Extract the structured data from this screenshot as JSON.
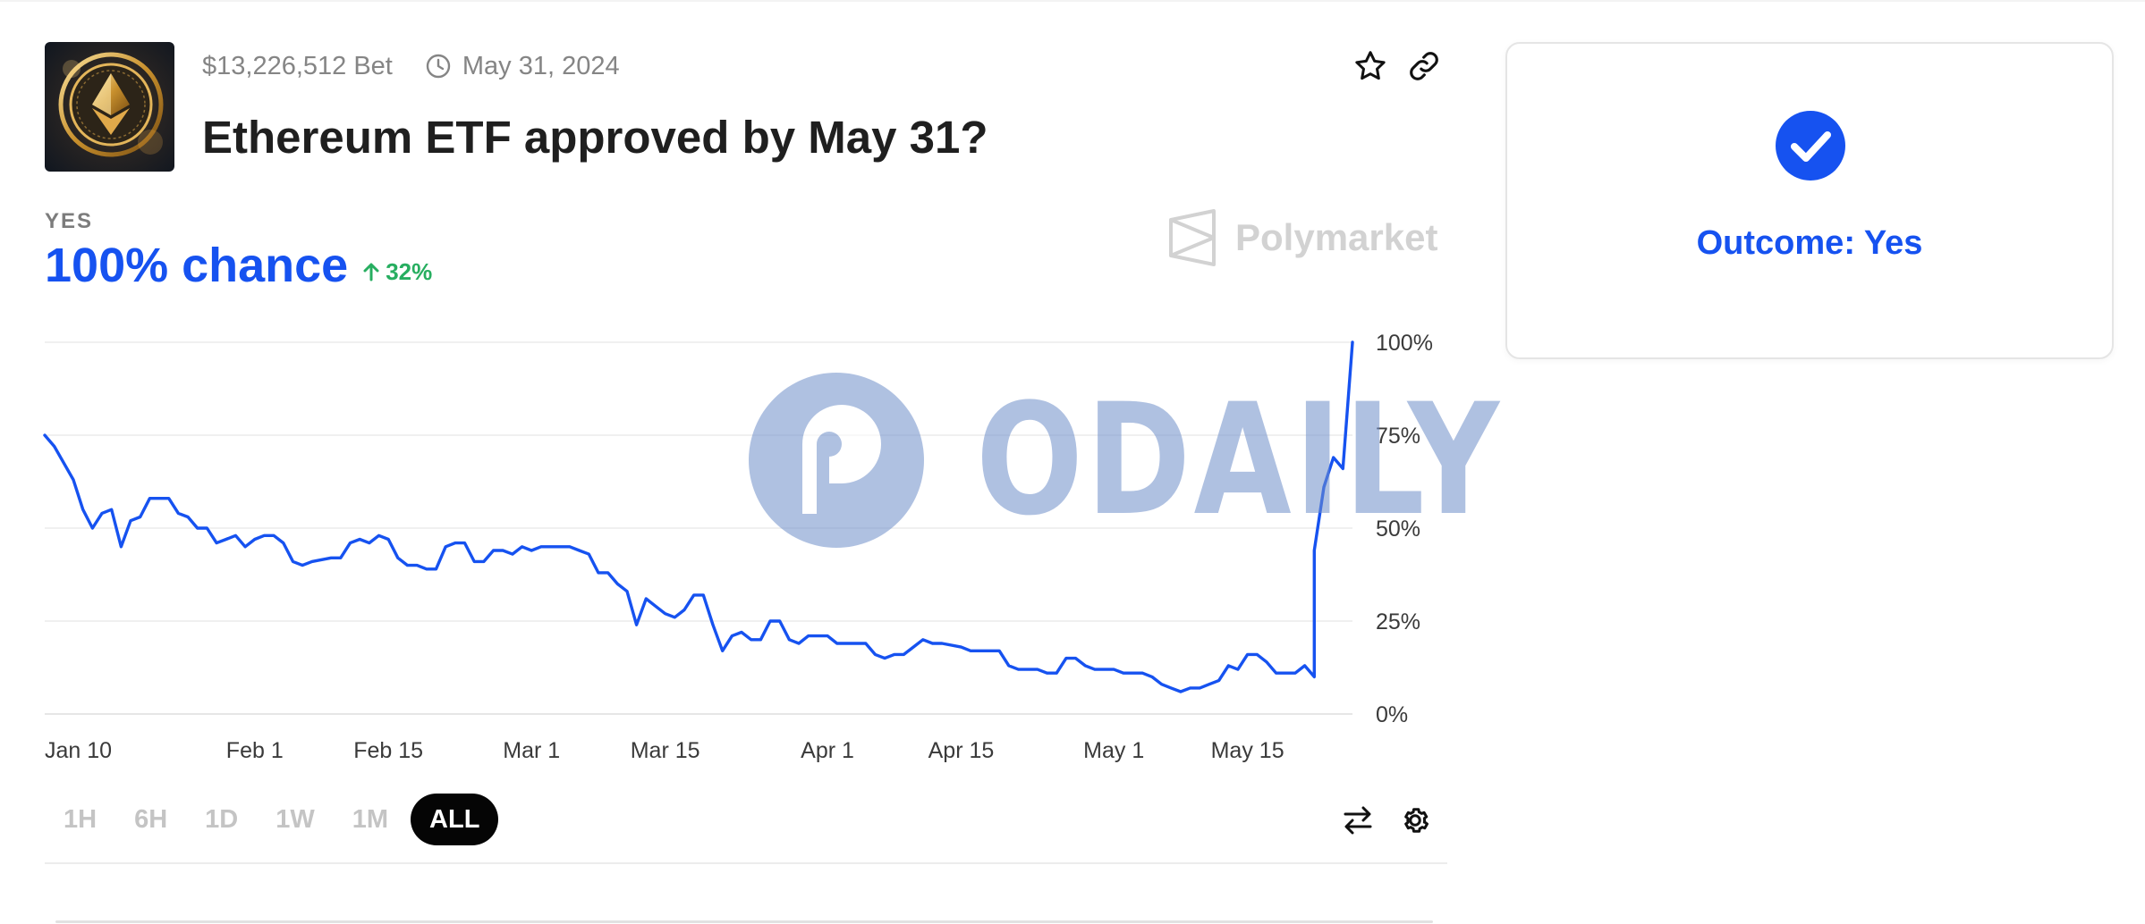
{
  "market": {
    "volume": "$13,226,512 Bet",
    "end_date": "May 31, 2024",
    "title": "Ethereum ETF approved by May 31?",
    "thumbnail_icon": "ethereum-coin-thumbnail"
  },
  "probability": {
    "outcome_label": "YES",
    "chance_text": "100% chance",
    "delta_text": "32%",
    "delta_direction": "up"
  },
  "brand": {
    "name": "Polymarket"
  },
  "watermark": {
    "text": "ODAILY"
  },
  "range_tabs": [
    {
      "label": "1H",
      "active": false
    },
    {
      "label": "6H",
      "active": false
    },
    {
      "label": "1D",
      "active": false
    },
    {
      "label": "1W",
      "active": false
    },
    {
      "label": "1M",
      "active": false
    },
    {
      "label": "ALL",
      "active": true
    }
  ],
  "outcome_card": {
    "text": "Outcome: Yes",
    "icon": "checkmark-circle-icon"
  },
  "colors": {
    "accent": "#1652f0",
    "positive": "#27ae60",
    "muted": "#858585",
    "grid": "#ececec",
    "watermark": "#6f8fca"
  },
  "chart_data": {
    "type": "line",
    "title": "",
    "xlabel": "",
    "ylabel": "",
    "ylim": [
      0,
      100
    ],
    "y_ticks": [
      "100%",
      "75%",
      "50%",
      "25%",
      "0%"
    ],
    "x_ticks": [
      "Jan 10",
      "Feb 1",
      "Feb 15",
      "Mar 1",
      "Mar 15",
      "Apr 1",
      "Apr 15",
      "May 1",
      "May 15"
    ],
    "grid": true,
    "series": [
      {
        "color": "#1652f0",
        "points": [
          [
            "Jan 10",
            75
          ],
          [
            "Jan 11",
            72
          ],
          [
            "Jan 13",
            63
          ],
          [
            "Jan 14",
            55
          ],
          [
            "Jan 15",
            50
          ],
          [
            "Jan 16",
            54
          ],
          [
            "Jan 17",
            55
          ],
          [
            "Jan 18",
            45
          ],
          [
            "Jan 19",
            52
          ],
          [
            "Jan 20",
            53
          ],
          [
            "Jan 21",
            58
          ],
          [
            "Jan 22",
            58
          ],
          [
            "Jan 23",
            58
          ],
          [
            "Jan 24",
            54
          ],
          [
            "Jan 25",
            53
          ],
          [
            "Jan 26",
            50
          ],
          [
            "Jan 27",
            50
          ],
          [
            "Jan 28",
            46
          ],
          [
            "Jan 29",
            47
          ],
          [
            "Jan 30",
            48
          ],
          [
            "Jan 31",
            45
          ],
          [
            "Feb 1",
            47
          ],
          [
            "Feb 2",
            48
          ],
          [
            "Feb 3",
            48
          ],
          [
            "Feb 4",
            46
          ],
          [
            "Feb 5",
            41
          ],
          [
            "Feb 6",
            40
          ],
          [
            "Feb 7",
            41
          ],
          [
            "Feb 9",
            42
          ],
          [
            "Feb 10",
            42
          ],
          [
            "Feb 11",
            46
          ],
          [
            "Feb 12",
            47
          ],
          [
            "Feb 13",
            46
          ],
          [
            "Feb 14",
            48
          ],
          [
            "Feb 15",
            47
          ],
          [
            "Feb 16",
            42
          ],
          [
            "Feb 17",
            40
          ],
          [
            "Feb 18",
            40
          ],
          [
            "Feb 19",
            39
          ],
          [
            "Feb 20",
            39
          ],
          [
            "Feb 21",
            45
          ],
          [
            "Feb 22",
            46
          ],
          [
            "Feb 23",
            46
          ],
          [
            "Feb 24",
            41
          ],
          [
            "Feb 25",
            41
          ],
          [
            "Feb 26",
            44
          ],
          [
            "Feb 27",
            44
          ],
          [
            "Feb 28",
            43
          ],
          [
            "Feb 29",
            45
          ],
          [
            "Mar 1",
            44
          ],
          [
            "Mar 2",
            45
          ],
          [
            "Mar 4",
            45
          ],
          [
            "Mar 5",
            45
          ],
          [
            "Mar 6",
            44
          ],
          [
            "Mar 7",
            43
          ],
          [
            "Mar 8",
            38
          ],
          [
            "Mar 9",
            38
          ],
          [
            "Mar 10",
            35
          ],
          [
            "Mar 11",
            33
          ],
          [
            "Mar 12",
            24
          ],
          [
            "Mar 13",
            31
          ],
          [
            "Mar 14",
            29
          ],
          [
            "Mar 15",
            27
          ],
          [
            "Mar 16",
            26
          ],
          [
            "Mar 17",
            28
          ],
          [
            "Mar 18",
            32
          ],
          [
            "Mar 19",
            32
          ],
          [
            "Mar 20",
            24
          ],
          [
            "Mar 21",
            17
          ],
          [
            "Mar 22",
            21
          ],
          [
            "Mar 23",
            22
          ],
          [
            "Mar 24",
            20
          ],
          [
            "Mar 25",
            20
          ],
          [
            "Mar 26",
            25
          ],
          [
            "Mar 27",
            25
          ],
          [
            "Mar 28",
            20
          ],
          [
            "Mar 29",
            19
          ],
          [
            "Mar 30",
            21
          ],
          [
            "Apr 1",
            21
          ],
          [
            "Apr 2",
            19
          ],
          [
            "Apr 4",
            19
          ],
          [
            "Apr 5",
            19
          ],
          [
            "Apr 6",
            16
          ],
          [
            "Apr 7",
            15
          ],
          [
            "Apr 8",
            16
          ],
          [
            "Apr 9",
            16
          ],
          [
            "Apr 10",
            18
          ],
          [
            "Apr 11",
            20
          ],
          [
            "Apr 12",
            19
          ],
          [
            "Apr 13",
            19
          ],
          [
            "Apr 15",
            18
          ],
          [
            "Apr 16",
            17
          ],
          [
            "Apr 18",
            17
          ],
          [
            "Apr 19",
            17
          ],
          [
            "Apr 20",
            13
          ],
          [
            "Apr 21",
            12
          ],
          [
            "Apr 23",
            12
          ],
          [
            "Apr 24",
            11
          ],
          [
            "Apr 25",
            11
          ],
          [
            "Apr 26",
            15
          ],
          [
            "Apr 27",
            15
          ],
          [
            "Apr 28",
            13
          ],
          [
            "Apr 29",
            12
          ],
          [
            "May 1",
            12
          ],
          [
            "May 2",
            11
          ],
          [
            "May 4",
            11
          ],
          [
            "May 5",
            10
          ],
          [
            "May 6",
            8
          ],
          [
            "May 7",
            7
          ],
          [
            "May 8",
            6
          ],
          [
            "May 9",
            7
          ],
          [
            "May 10",
            7
          ],
          [
            "May 11",
            8
          ],
          [
            "May 12",
            9
          ],
          [
            "May 13",
            13
          ],
          [
            "May 14",
            12
          ],
          [
            "May 15",
            16
          ],
          [
            "May 16",
            16
          ],
          [
            "May 17",
            14
          ],
          [
            "May 18",
            11
          ],
          [
            "May 19",
            11
          ],
          [
            "May 20",
            11
          ],
          [
            "May 21",
            13
          ],
          [
            "May 22",
            10
          ],
          [
            "May 22",
            44
          ],
          [
            "May 23",
            61
          ],
          [
            "May 24",
            69
          ],
          [
            "May 25",
            66
          ],
          [
            "May 26",
            100
          ]
        ]
      }
    ]
  }
}
